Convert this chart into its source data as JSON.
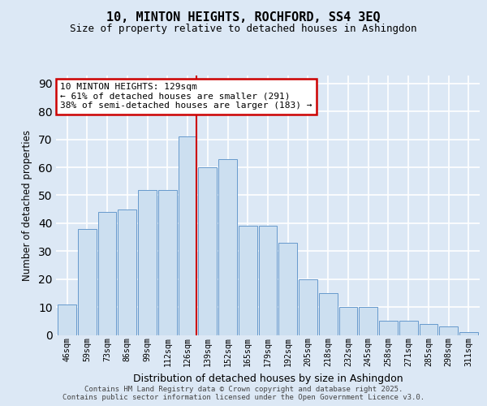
{
  "title": "10, MINTON HEIGHTS, ROCHFORD, SS4 3EQ",
  "subtitle": "Size of property relative to detached houses in Ashingdon",
  "xlabel": "Distribution of detached houses by size in Ashingdon",
  "ylabel": "Number of detached properties",
  "categories": [
    "46sqm",
    "59sqm",
    "73sqm",
    "86sqm",
    "99sqm",
    "112sqm",
    "126sqm",
    "139sqm",
    "152sqm",
    "165sqm",
    "179sqm",
    "192sqm",
    "205sqm",
    "218sqm",
    "232sqm",
    "245sqm",
    "258sqm",
    "271sqm",
    "285sqm",
    "298sqm",
    "311sqm"
  ],
  "values": [
    11,
    38,
    44,
    45,
    52,
    52,
    71,
    60,
    63,
    39,
    39,
    33,
    20,
    15,
    10,
    10,
    5,
    5,
    4,
    3,
    1
  ],
  "bar_color": "#ccdff0",
  "bar_edge_color": "#6699cc",
  "background_color": "#dce8f5",
  "grid_color": "#ffffff",
  "vline_color": "#cc0000",
  "annotation_text": "10 MINTON HEIGHTS: 129sqm\n← 61% of detached houses are smaller (291)\n38% of semi-detached houses are larger (183) →",
  "annotation_box_color": "#ffffff",
  "annotation_box_edge_color": "#cc0000",
  "footer": "Contains HM Land Registry data © Crown copyright and database right 2025.\nContains public sector information licensed under the Open Government Licence v3.0.",
  "ylim": [
    0,
    93
  ],
  "yticks": [
    0,
    10,
    20,
    30,
    40,
    50,
    60,
    70,
    80,
    90
  ]
}
